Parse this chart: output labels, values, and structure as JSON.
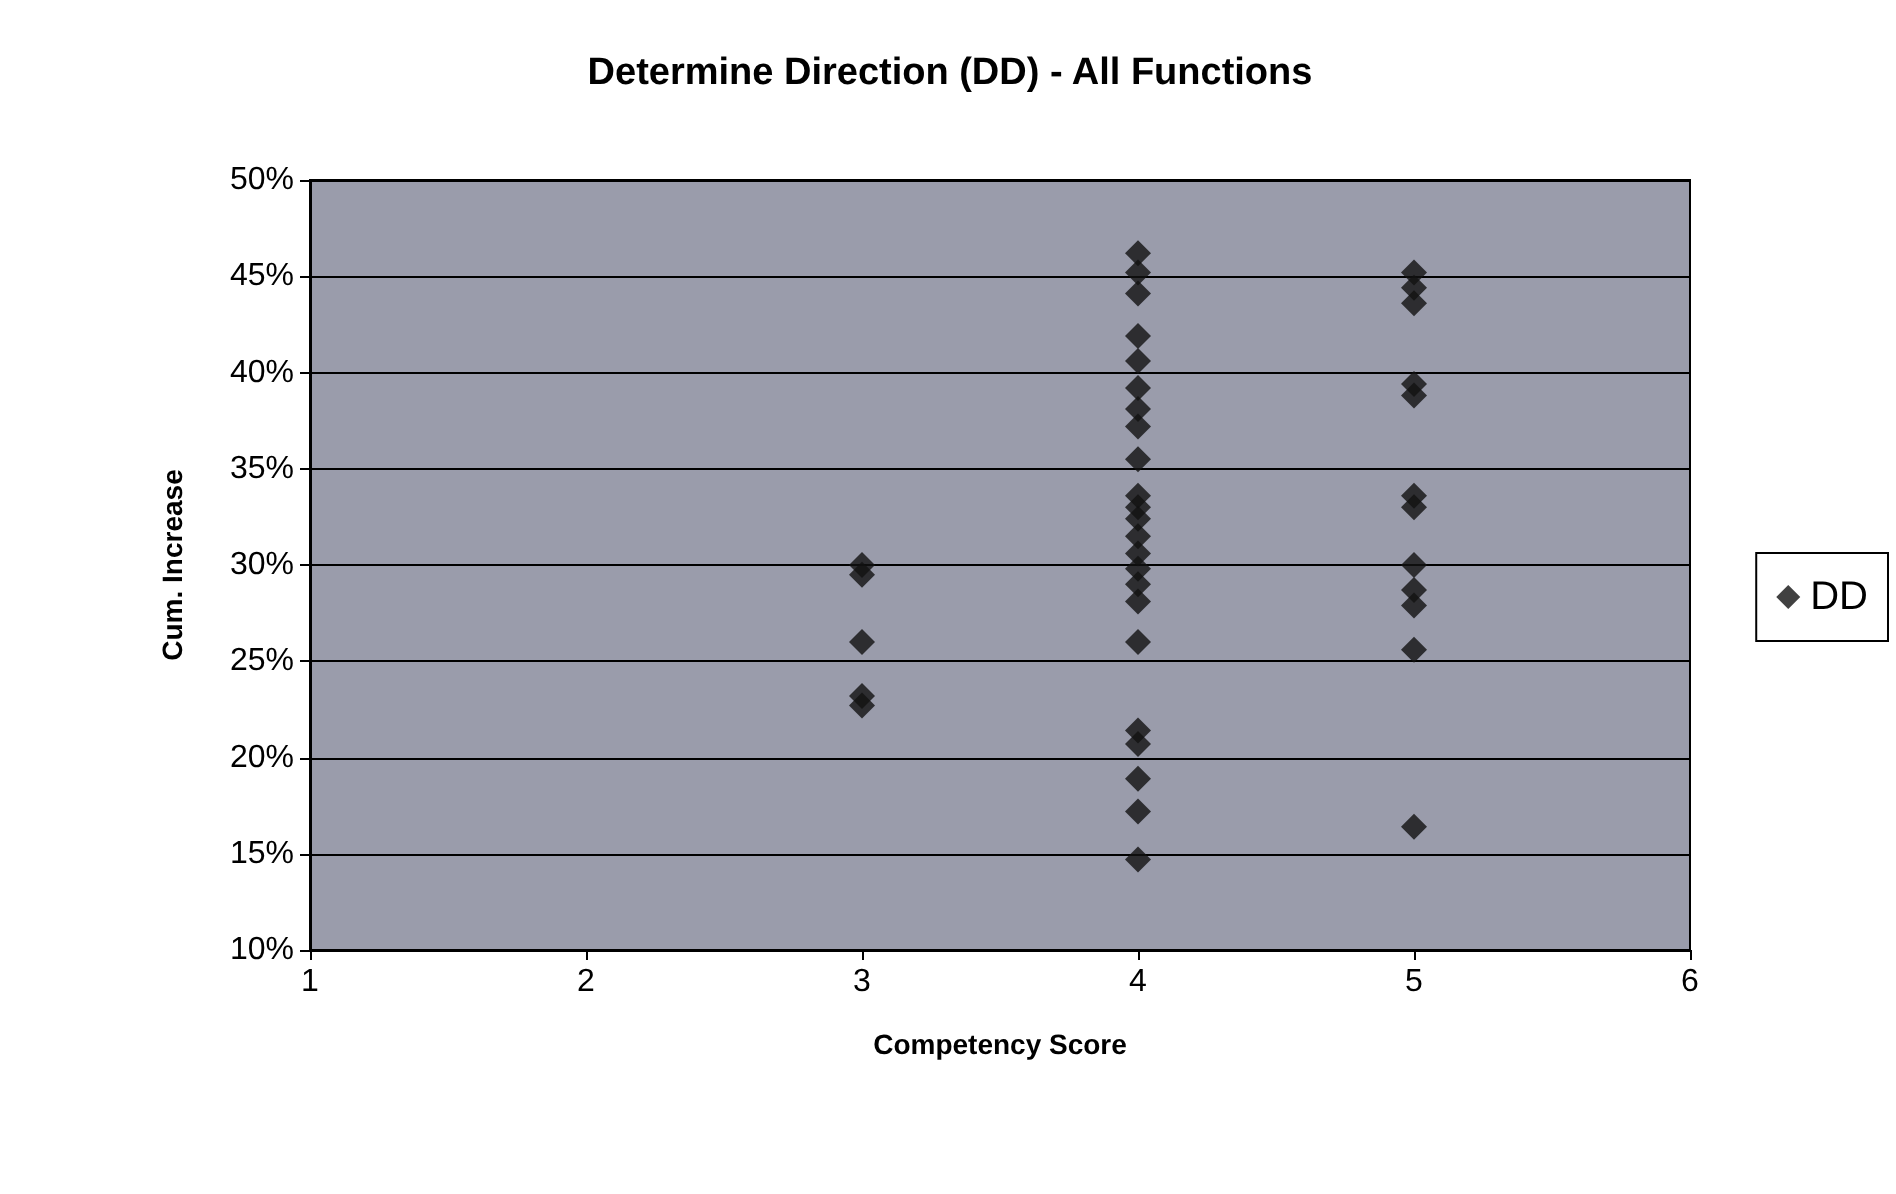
{
  "chart_data": {
    "type": "scatter",
    "title": "Determine Direction (DD) - All Functions",
    "xlabel": "Competency Score",
    "ylabel": "Cum. Increase",
    "x": [
      3,
      3,
      3,
      3,
      3,
      4,
      4,
      4,
      4,
      4,
      4,
      4,
      4,
      4,
      4,
      4,
      4,
      4,
      4,
      4,
      4,
      4,
      4,
      4,
      4,
      4,
      4,
      4,
      5,
      5,
      5,
      5,
      5,
      5,
      5,
      5,
      5,
      5,
      5,
      5
    ],
    "series": [
      {
        "name": "DD",
        "color": "#111111",
        "values": [
          30,
          29.5,
          26,
          23.2,
          22.7,
          46.2,
          45.2,
          44.1,
          41.9,
          40.6,
          39.2,
          38.1,
          37.2,
          35.5,
          33.6,
          33,
          32.4,
          31.5,
          30.6,
          29.8,
          29,
          28.1,
          26,
          21.4,
          20.7,
          18.9,
          17.2,
          14.7,
          45.2,
          44.4,
          43.6,
          39.4,
          38.8,
          33.6,
          33,
          30,
          28.7,
          27.9,
          25.6,
          16.4
        ]
      }
    ],
    "xlim": [
      1,
      6
    ],
    "xticks": [
      1,
      2,
      3,
      4,
      5,
      6
    ],
    "ylim": [
      10,
      50
    ],
    "yticks": [
      {
        "value": 10,
        "label": "10%"
      },
      {
        "value": 15,
        "label": "15%"
      },
      {
        "value": 20,
        "label": "20%"
      },
      {
        "value": 25,
        "label": "25%"
      },
      {
        "value": 30,
        "label": "30%"
      },
      {
        "value": 35,
        "label": "35%"
      },
      {
        "value": 40,
        "label": "40%"
      },
      {
        "value": 45,
        "label": "45%"
      },
      {
        "value": 50,
        "label": "50%"
      }
    ],
    "grid": "y",
    "legend": "right",
    "marker": "diamond"
  }
}
